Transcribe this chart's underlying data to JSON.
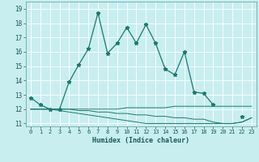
{
  "xlabel": "Humidex (Indice chaleur)",
  "x": [
    0,
    1,
    2,
    3,
    4,
    5,
    6,
    7,
    8,
    9,
    10,
    11,
    12,
    13,
    14,
    15,
    16,
    17,
    18,
    19,
    20,
    21,
    22,
    23
  ],
  "line1": [
    12.8,
    12.3,
    12.0,
    12.0,
    13.9,
    15.1,
    16.2,
    18.7,
    15.9,
    16.6,
    17.7,
    16.6,
    17.9,
    16.6,
    14.8,
    14.4,
    16.0,
    13.2,
    13.1,
    12.3,
    null,
    null,
    11.5,
    null
  ],
  "line2": [
    12.0,
    12.0,
    12.0,
    12.0,
    12.0,
    12.0,
    12.0,
    12.0,
    12.0,
    12.0,
    12.1,
    12.1,
    12.1,
    12.1,
    12.1,
    12.2,
    12.2,
    12.2,
    12.2,
    12.2,
    12.2,
    12.2,
    12.2,
    12.2
  ],
  "line3": [
    12.0,
    12.0,
    12.0,
    12.0,
    12.0,
    11.9,
    11.9,
    11.8,
    11.8,
    11.7,
    11.7,
    11.6,
    11.6,
    11.5,
    11.5,
    11.4,
    11.4,
    11.3,
    11.3,
    11.1,
    11.0,
    11.0,
    11.1,
    11.4
  ],
  "line4": [
    12.0,
    12.0,
    12.0,
    11.9,
    11.8,
    11.7,
    11.6,
    11.5,
    11.4,
    11.3,
    11.2,
    11.1,
    11.0,
    11.0,
    11.0,
    11.0,
    11.0,
    11.0,
    11.0,
    11.0,
    11.0,
    11.0,
    11.1,
    11.4
  ],
  "ylim": [
    10.8,
    19.5
  ],
  "yticks": [
    11,
    12,
    13,
    14,
    15,
    16,
    17,
    18,
    19
  ],
  "line_color": "#1a7a6e",
  "bg_color": "#c8eef0",
  "grid_color": "#ffffff"
}
